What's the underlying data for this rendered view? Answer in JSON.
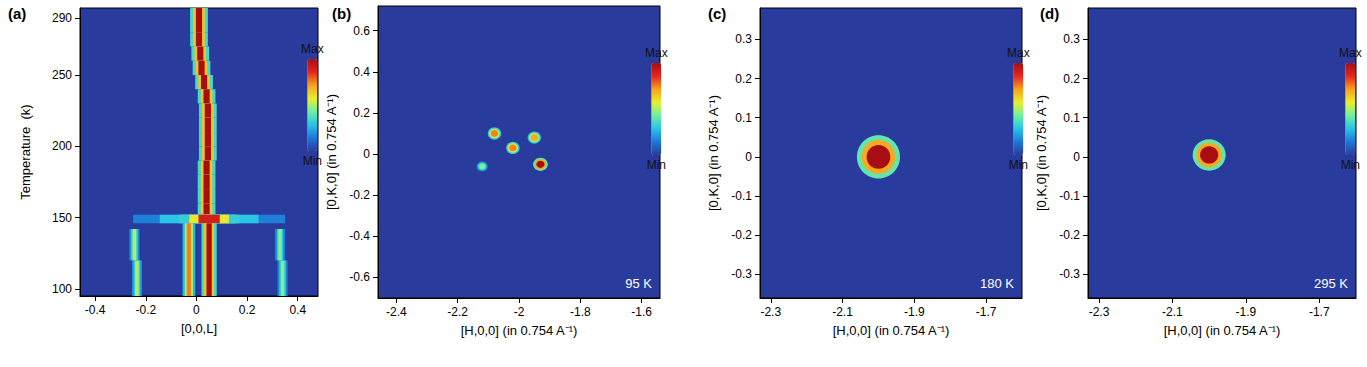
{
  "chart_data": [
    {
      "type": "heatmap",
      "title": "(a)",
      "x_label": "[0,0,L]",
      "y_label": "Temperature  (k)",
      "xlim": [
        -0.46,
        0.48
      ],
      "ylim": [
        95,
        297
      ],
      "xticks": [
        -0.4,
        -0.2,
        0,
        0.2,
        0.4
      ],
      "yticks": [
        100,
        150,
        200,
        250,
        290
      ],
      "grid": false,
      "colorbar": {
        "range": [
          0,
          1
        ],
        "ticks": [
          {
            "value": 0,
            "label": "Min"
          },
          {
            "value": 1,
            "label": "Max"
          }
        ]
      },
      "bands": [
        {
          "l": 0.01,
          "t_from": 280,
          "t_to": 297,
          "half_width": 0.035,
          "intensity": 1
        },
        {
          "l": 0.01,
          "t_from": 270,
          "t_to": 280,
          "half_width": 0.035,
          "intensity": 1
        },
        {
          "l": 0.015,
          "t_from": 260,
          "t_to": 270,
          "half_width": 0.035,
          "intensity": 1
        },
        {
          "l": 0.02,
          "t_from": 250,
          "t_to": 260,
          "half_width": 0.035,
          "intensity": 1
        },
        {
          "l": 0.03,
          "t_from": 240,
          "t_to": 250,
          "half_width": 0.035,
          "intensity": 1
        },
        {
          "l": 0.04,
          "t_from": 230,
          "t_to": 240,
          "half_width": 0.035,
          "intensity": 1
        },
        {
          "l": 0.045,
          "t_from": 220,
          "t_to": 230,
          "half_width": 0.035,
          "intensity": 1
        },
        {
          "l": 0.045,
          "t_from": 210,
          "t_to": 220,
          "half_width": 0.035,
          "intensity": 1
        },
        {
          "l": 0.045,
          "t_from": 200,
          "t_to": 210,
          "half_width": 0.035,
          "intensity": 1
        },
        {
          "l": 0.045,
          "t_from": 190,
          "t_to": 200,
          "half_width": 0.035,
          "intensity": 1
        },
        {
          "l": 0.04,
          "t_from": 180,
          "t_to": 190,
          "half_width": 0.035,
          "intensity": 1
        },
        {
          "l": 0.04,
          "t_from": 170,
          "t_to": 180,
          "half_width": 0.035,
          "intensity": 1
        },
        {
          "l": 0.04,
          "t_from": 160,
          "t_to": 170,
          "half_width": 0.035,
          "intensity": 1
        },
        {
          "l": 0.04,
          "t_from": 152,
          "t_to": 160,
          "half_width": 0.035,
          "intensity": 1
        },
        {
          "l": 0.05,
          "t_from": 146,
          "t_to": 152,
          "half_width": 0.3,
          "intensity": 0.45
        },
        {
          "l": 0.05,
          "t_from": 146,
          "t_to": 152,
          "half_width": 0.12,
          "intensity": 0.9
        },
        {
          "l": -0.03,
          "t_from": 95,
          "t_to": 146,
          "half_width": 0.025,
          "intensity": 0.75
        },
        {
          "l": 0.05,
          "t_from": 95,
          "t_to": 146,
          "half_width": 0.03,
          "intensity": 1
        },
        {
          "l": -0.235,
          "t_from": 95,
          "t_to": 120,
          "half_width": 0.02,
          "intensity": 0.5
        },
        {
          "l": -0.245,
          "t_from": 120,
          "t_to": 142,
          "half_width": 0.02,
          "intensity": 0.5
        },
        {
          "l": 0.34,
          "t_from": 95,
          "t_to": 120,
          "half_width": 0.02,
          "intensity": 0.45
        },
        {
          "l": 0.33,
          "t_from": 120,
          "t_to": 142,
          "half_width": 0.02,
          "intensity": 0.45
        }
      ]
    },
    {
      "type": "heatmap",
      "title": "(b)",
      "x_label": "[H,0,0] (in 0.754 A⁻¹)",
      "y_label": "[0,K,0] (in 0.754 A⁻¹)",
      "xlim": [
        -2.46,
        -1.54
      ],
      "ylim": [
        -0.7,
        0.72
      ],
      "xticks": [
        -2.4,
        -2.2,
        -2,
        -1.8,
        -1.6
      ],
      "yticks": [
        -0.6,
        -0.4,
        -0.2,
        0,
        0.2,
        0.4,
        0.6
      ],
      "grid": false,
      "colorbar": {
        "range": [
          0,
          1
        ],
        "ticks": [
          {
            "value": 0,
            "label": "Min"
          },
          {
            "value": 1,
            "label": "Max"
          }
        ]
      },
      "annotation": "95 K",
      "spots": [
        {
          "h": -2.08,
          "k": 0.1,
          "radius_h": 0.022,
          "radius_k": 0.03,
          "intensity": 0.75
        },
        {
          "h": -1.95,
          "k": 0.08,
          "radius_h": 0.022,
          "radius_k": 0.03,
          "intensity": 0.7
        },
        {
          "h": -2.02,
          "k": 0.03,
          "radius_h": 0.022,
          "radius_k": 0.03,
          "intensity": 0.75
        },
        {
          "h": -1.93,
          "k": -0.05,
          "radius_h": 0.024,
          "radius_k": 0.032,
          "intensity": 1
        },
        {
          "h": -2.12,
          "k": -0.06,
          "radius_h": 0.018,
          "radius_k": 0.024,
          "intensity": 0.45
        }
      ]
    },
    {
      "type": "heatmap",
      "title": "(c)",
      "x_label": "[H,0,0] (in 0.754 A⁻¹)",
      "y_label": "[0,K,0] (in 0.754 A⁻¹)",
      "xlim": [
        -2.33,
        -1.6
      ],
      "ylim": [
        -0.36,
        0.38
      ],
      "xticks": [
        -2.3,
        -2.1,
        -1.9,
        -1.7
      ],
      "yticks": [
        -0.3,
        -0.2,
        -0.1,
        0,
        0.1,
        0.2,
        0.3
      ],
      "grid": false,
      "colorbar": {
        "range": [
          0,
          1
        ],
        "ticks": [
          {
            "value": 0,
            "label": "Min"
          },
          {
            "value": 1,
            "label": "Max"
          }
        ]
      },
      "annotation": "180 K",
      "spots": [
        {
          "h": -2.0,
          "k": 0.0,
          "radius_h": 0.06,
          "radius_k": 0.055,
          "intensity": 1
        }
      ]
    },
    {
      "type": "heatmap",
      "title": "(d)",
      "x_label": "[H,0,0] (in 0.754 A⁻¹)",
      "y_label": "[0,K,0] (in 0.754 A⁻¹)",
      "xlim": [
        -2.33,
        -1.6
      ],
      "ylim": [
        -0.36,
        0.38
      ],
      "xticks": [
        -2.3,
        -2.1,
        -1.9,
        -1.7
      ],
      "yticks": [
        -0.3,
        -0.2,
        -0.1,
        0,
        0.1,
        0.2,
        0.3
      ],
      "grid": false,
      "colorbar": {
        "range": [
          0,
          1
        ],
        "ticks": [
          {
            "value": 0,
            "label": "Min"
          },
          {
            "value": 1,
            "label": "Max"
          }
        ]
      },
      "annotation": "295 K",
      "spots": [
        {
          "h": -2.0,
          "k": 0.005,
          "radius_h": 0.045,
          "radius_k": 0.04,
          "intensity": 1
        }
      ]
    }
  ]
}
